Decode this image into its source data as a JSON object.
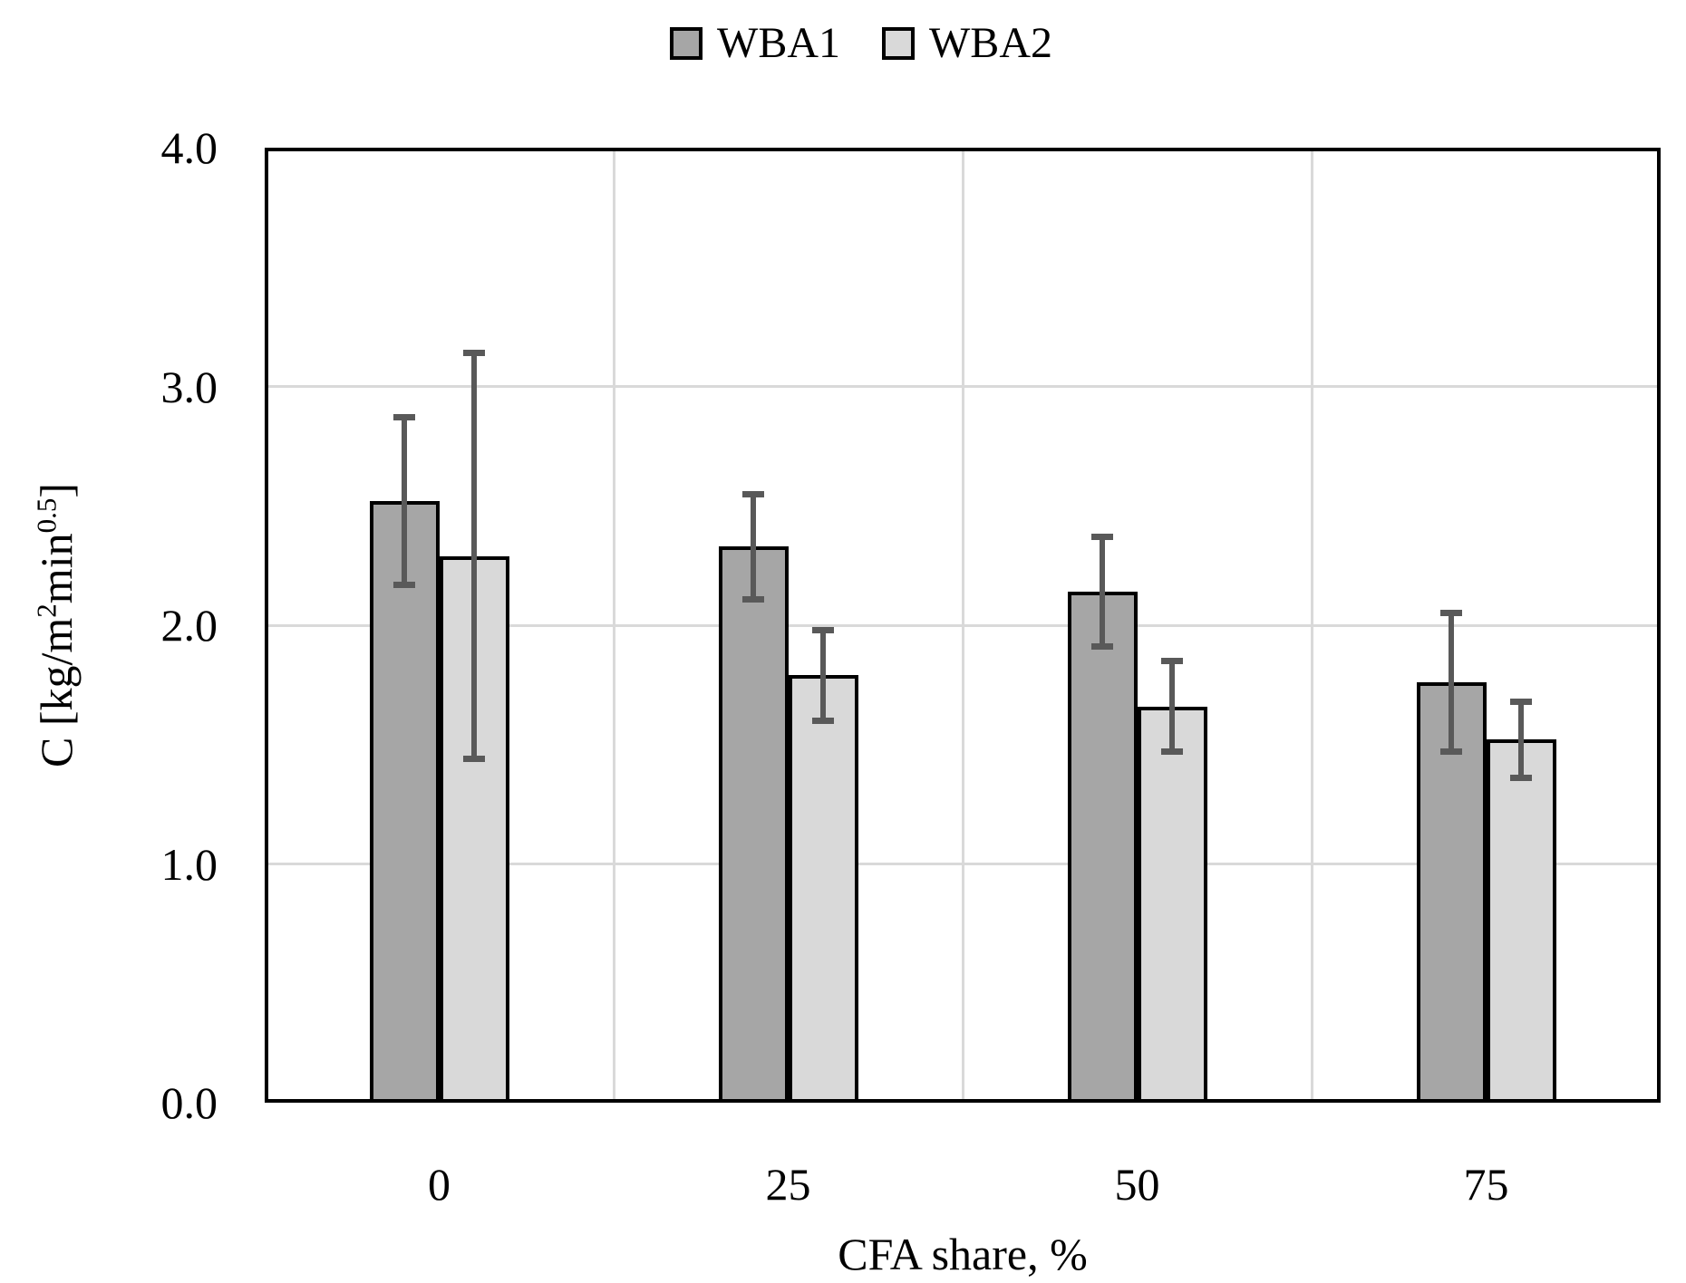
{
  "chart_data": {
    "type": "bar",
    "title": "",
    "categories": [
      "0",
      "25",
      "50",
      "75"
    ],
    "series": [
      {
        "name": "WBA1",
        "color": "#A6A6A6",
        "values": [
          2.52,
          2.33,
          2.14,
          1.76
        ],
        "errors": [
          0.35,
          0.22,
          0.23,
          0.29
        ]
      },
      {
        "name": "WBA2",
        "color": "#D9D9D9",
        "values": [
          2.29,
          1.79,
          1.66,
          1.52
        ],
        "errors": [
          0.85,
          0.19,
          0.19,
          0.16
        ]
      }
    ],
    "xlabel": "CFA share, %",
    "ylabel": "C [kg/m2min0.5]",
    "ylabel_parts": {
      "base1": "C [kg/m",
      "sup1": "2",
      "base2": "min",
      "sup2": "0.5",
      "base3": "]"
    },
    "ylim": [
      0,
      4
    ],
    "y_ticks": [
      {
        "value": 0,
        "label": "0.0"
      },
      {
        "value": 1,
        "label": "1.0"
      },
      {
        "value": 2,
        "label": "2.0"
      },
      {
        "value": 3,
        "label": "3.0"
      },
      {
        "value": 4,
        "label": "4.0"
      }
    ],
    "grid": "horizontal major gridlines and vertical category-boundary gridlines",
    "legend_position": "top-center",
    "colors": {
      "error_bar": "#595959",
      "gridline": "#D9D9D9",
      "axis": "#000000",
      "background": "#FFFFFF",
      "text": "#000000"
    }
  }
}
